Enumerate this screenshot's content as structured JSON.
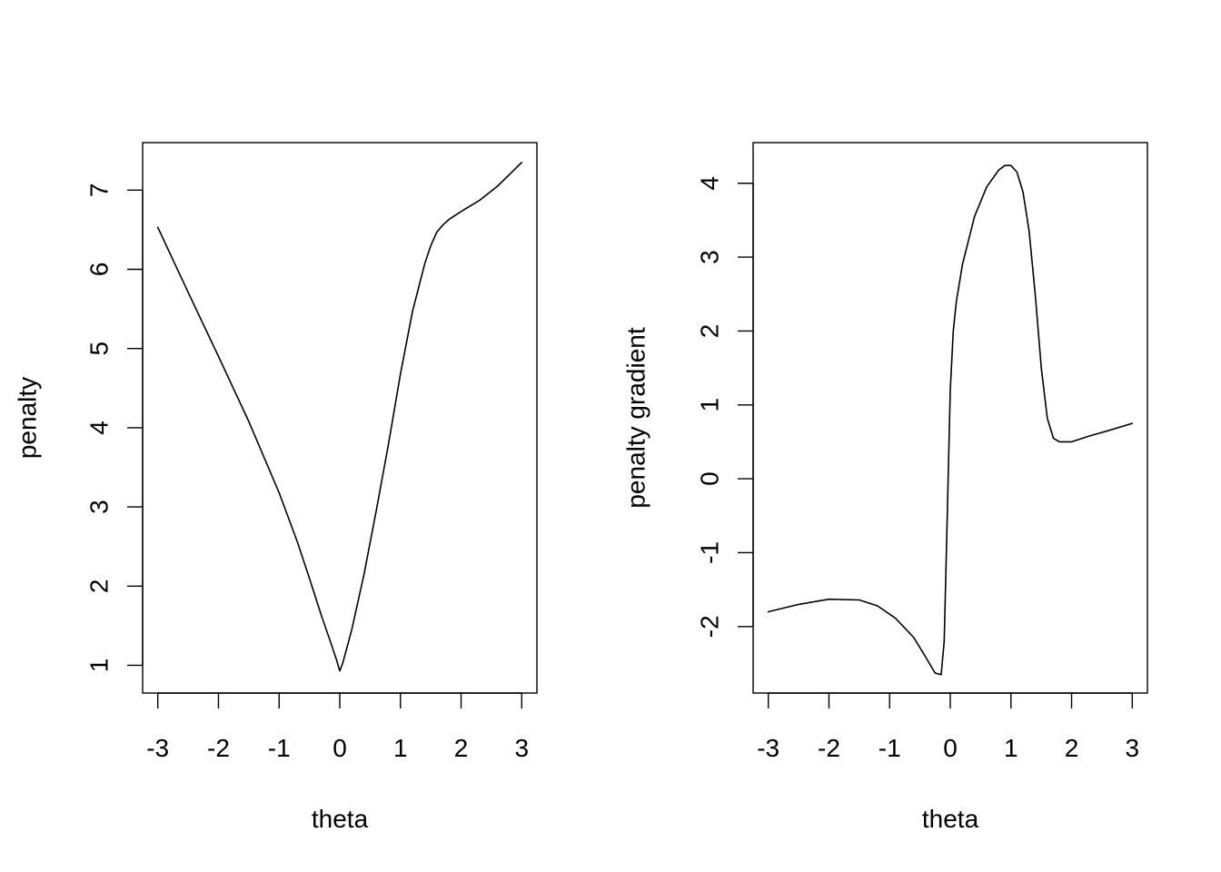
{
  "chart_data": [
    {
      "type": "line",
      "title": "",
      "xlabel": "theta",
      "ylabel": "penalty",
      "xlim": [
        -3.25,
        3.25
      ],
      "ylim": [
        0.65,
        7.6
      ],
      "xticks": [
        -3,
        -2,
        -1,
        0,
        1,
        2,
        3
      ],
      "xtick_labels": [
        "-3",
        "-2",
        "-1",
        "0",
        "1",
        "2",
        "3"
      ],
      "yticks": [
        1,
        2,
        3,
        4,
        5,
        6,
        7
      ],
      "ytick_labels": [
        "1",
        "2",
        "3",
        "4",
        "5",
        "6",
        "7"
      ],
      "grid": false,
      "series": [
        {
          "color": "#000000",
          "x": [
            -3.0,
            -2.5,
            -2.0,
            -1.5,
            -1.0,
            -0.7,
            -0.5,
            -0.3,
            -0.15,
            -0.05,
            0.0,
            0.05,
            0.2,
            0.4,
            0.6,
            0.8,
            1.0,
            1.2,
            1.4,
            1.5,
            1.6,
            1.7,
            1.8,
            2.0,
            2.3,
            2.6,
            3.0
          ],
          "y": [
            6.53,
            5.71,
            4.9,
            4.08,
            3.18,
            2.56,
            2.1,
            1.62,
            1.29,
            1.06,
            0.93,
            1.03,
            1.46,
            2.15,
            2.95,
            3.78,
            4.68,
            5.47,
            6.07,
            6.3,
            6.47,
            6.56,
            6.63,
            6.73,
            6.87,
            7.05,
            7.35
          ]
        }
      ]
    },
    {
      "type": "line",
      "title": "",
      "xlabel": "theta",
      "ylabel": "penalty gradient",
      "xlim": [
        -3.25,
        3.25
      ],
      "ylim": [
        -2.9,
        4.55
      ],
      "xticks": [
        -3,
        -2,
        -1,
        0,
        1,
        2,
        3
      ],
      "xtick_labels": [
        "-3",
        "-2",
        "-1",
        "0",
        "1",
        "2",
        "3"
      ],
      "yticks": [
        -2,
        -1,
        0,
        1,
        2,
        3,
        4
      ],
      "ytick_labels": [
        "-2",
        "-1",
        "0",
        "1",
        "2",
        "3",
        "4"
      ],
      "grid": false,
      "series": [
        {
          "color": "#000000",
          "x": [
            -3.0,
            -2.5,
            -2.0,
            -1.5,
            -1.2,
            -0.9,
            -0.6,
            -0.4,
            -0.25,
            -0.15,
            -0.1,
            -0.05,
            0.0,
            0.05,
            0.1,
            0.2,
            0.4,
            0.6,
            0.8,
            0.9,
            1.0,
            1.1,
            1.2,
            1.3,
            1.4,
            1.5,
            1.6,
            1.7,
            1.8,
            1.9,
            2.0,
            2.3,
            2.6,
            3.0
          ],
          "y": [
            -1.8,
            -1.7,
            -1.63,
            -1.64,
            -1.72,
            -1.89,
            -2.15,
            -2.42,
            -2.63,
            -2.65,
            -2.2,
            -0.5,
            1.2,
            2.0,
            2.4,
            2.9,
            3.55,
            3.95,
            4.18,
            4.24,
            4.24,
            4.15,
            3.88,
            3.35,
            2.5,
            1.5,
            0.82,
            0.55,
            0.5,
            0.5,
            0.5,
            0.58,
            0.65,
            0.75
          ]
        }
      ]
    }
  ]
}
